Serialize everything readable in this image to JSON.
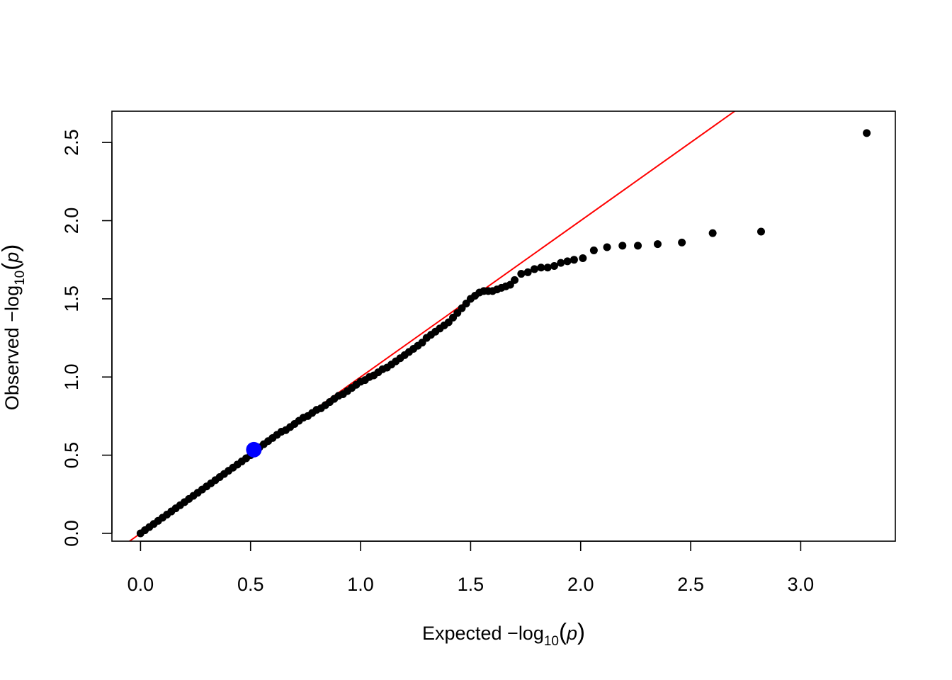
{
  "chart_data": {
    "type": "scatter",
    "title": "",
    "xlabel": "Expected  −log10(p)",
    "ylabel": "Observed  −log10(p)",
    "xlabel_parts": {
      "prefix": "Expected  −log",
      "sub": "10",
      "open": "(",
      "var": "p",
      "close": ")"
    },
    "ylabel_parts": {
      "prefix": "Observed  −log",
      "sub": "10",
      "open": "(",
      "var": "p",
      "close": ")"
    },
    "xlim": [
      -0.13,
      3.43
    ],
    "ylim": [
      -0.05,
      2.7
    ],
    "x_ticks": [
      0.0,
      0.5,
      1.0,
      1.5,
      2.0,
      2.5,
      3.0
    ],
    "x_tick_labels": [
      "0.0",
      "0.5",
      "1.0",
      "1.5",
      "2.0",
      "2.5",
      "3.0"
    ],
    "y_ticks": [
      0.0,
      0.5,
      1.0,
      1.5,
      2.0,
      2.5
    ],
    "y_tick_labels": [
      "0.0",
      "0.5",
      "1.0",
      "1.5",
      "2.0",
      "2.5"
    ],
    "grid": false,
    "legend": "none",
    "point_color": "#000000",
    "reference_line": {
      "slope": 1,
      "intercept": 0,
      "color": "#ff0000"
    },
    "highlight_point": {
      "x": 0.515,
      "y": 0.535,
      "color": "#0000ff"
    },
    "series": [
      {
        "x": [
          0.0,
          0.02,
          0.04,
          0.06,
          0.08,
          0.1,
          0.12,
          0.14,
          0.16,
          0.18,
          0.2,
          0.22,
          0.24,
          0.26,
          0.28,
          0.3,
          0.32,
          0.34,
          0.36,
          0.38,
          0.4,
          0.42,
          0.44,
          0.46,
          0.48,
          0.5,
          0.52,
          0.54,
          0.56,
          0.58,
          0.6,
          0.62,
          0.64,
          0.66,
          0.68,
          0.7,
          0.72,
          0.74,
          0.76,
          0.78,
          0.8,
          0.82,
          0.84,
          0.86,
          0.88,
          0.9,
          0.92,
          0.94,
          0.96,
          0.98,
          1.0,
          1.02,
          1.04,
          1.06,
          1.08,
          1.1,
          1.12,
          1.14,
          1.16,
          1.18,
          1.2,
          1.22,
          1.24,
          1.26,
          1.28,
          1.3,
          1.32,
          1.34,
          1.36,
          1.38,
          1.4,
          1.42,
          1.44,
          1.46,
          1.48,
          1.5,
          1.52,
          1.54,
          1.56,
          1.58,
          1.6,
          1.62,
          1.64,
          1.66,
          1.68,
          1.7,
          1.73,
          1.76,
          1.79,
          1.82,
          1.85,
          1.88,
          1.91,
          1.94,
          1.97,
          2.01,
          2.06,
          2.12,
          2.19,
          2.26,
          2.35,
          2.46,
          2.6,
          2.82,
          3.3
        ],
        "y": [
          0.0,
          0.02,
          0.04,
          0.06,
          0.08,
          0.1,
          0.12,
          0.14,
          0.16,
          0.18,
          0.2,
          0.22,
          0.24,
          0.26,
          0.28,
          0.3,
          0.32,
          0.34,
          0.36,
          0.38,
          0.4,
          0.42,
          0.44,
          0.46,
          0.48,
          0.5,
          0.52,
          0.55,
          0.57,
          0.59,
          0.61,
          0.63,
          0.65,
          0.66,
          0.68,
          0.7,
          0.72,
          0.74,
          0.75,
          0.77,
          0.79,
          0.8,
          0.82,
          0.84,
          0.86,
          0.88,
          0.89,
          0.91,
          0.93,
          0.95,
          0.97,
          0.98,
          1.0,
          1.01,
          1.03,
          1.05,
          1.06,
          1.08,
          1.1,
          1.12,
          1.14,
          1.16,
          1.18,
          1.2,
          1.22,
          1.25,
          1.27,
          1.29,
          1.31,
          1.33,
          1.35,
          1.38,
          1.41,
          1.44,
          1.47,
          1.5,
          1.52,
          1.54,
          1.55,
          1.55,
          1.55,
          1.56,
          1.57,
          1.58,
          1.59,
          1.62,
          1.66,
          1.67,
          1.69,
          1.7,
          1.7,
          1.71,
          1.73,
          1.74,
          1.75,
          1.76,
          1.81,
          1.83,
          1.84,
          1.84,
          1.85,
          1.86,
          1.92,
          1.93,
          2.56
        ]
      }
    ]
  }
}
